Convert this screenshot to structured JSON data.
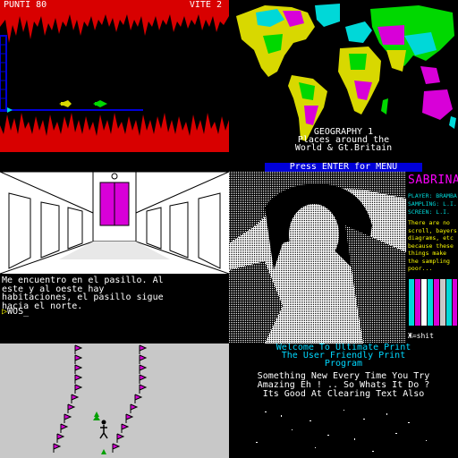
{
  "panel1": {
    "score_label": "PUNTI 80",
    "lives_label": "VITE 2"
  },
  "panel2": {
    "caption": [
      "GEOGRAPHY 1",
      "Places around the",
      "World & Gt.Britain"
    ]
  },
  "panel3": {
    "text": [
      "Me encuentro en el pasillo. Al",
      "este y al oeste hay",
      "habitaciones, el pasillo sigue",
      "hacia el norte."
    ],
    "prompt_symbol": "▷",
    "prompt_input": "WOS_"
  },
  "panel4": {
    "banner": "Press ENTER for MENU",
    "title": "SABRINA",
    "meta": [
      "PLAYER: BRAMBA",
      "SAMPLING: L.I.",
      "SCREEN: L.I."
    ],
    "note": [
      "There are no",
      "scroll, bayers",
      "diagrams, etc",
      "because these",
      "things make",
      "the sampling",
      "poor..."
    ],
    "logo": "Ж=shit"
  },
  "panel6": {
    "cyan_lines": [
      "Welcome To Ultimate Print",
      "The User Friendly Print",
      "Program"
    ],
    "white_lines": [
      "Something New Every Time You Try",
      "Amazing Eh ! .. So Whats It Do ?",
      "Its Good At Clearing Text Also"
    ]
  },
  "colors": {
    "blue": "#0000d8",
    "red": "#d80000",
    "magenta": "#d800d8",
    "green": "#00d800",
    "cyan": "#00d8d8",
    "yellow": "#d8d800"
  }
}
